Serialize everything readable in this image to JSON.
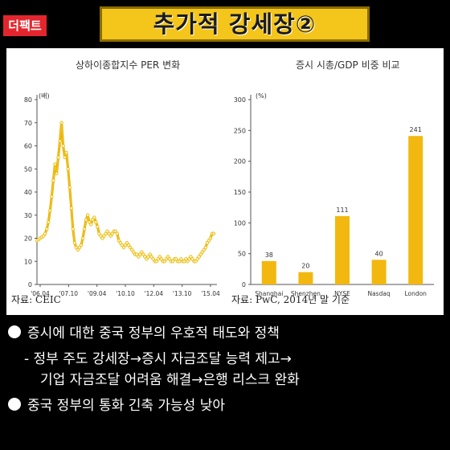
{
  "brand": {
    "logo_text": "더팩트"
  },
  "header": {
    "title": "추가적 강세장②"
  },
  "chart_data": [
    {
      "type": "line",
      "title": "상하이종합지수 PER 변화",
      "ylabel": "(배)",
      "ylim": [
        0,
        80
      ],
      "yticks": [
        0,
        10,
        20,
        30,
        40,
        50,
        60,
        70,
        80
      ],
      "xticks": [
        "'06.04",
        "'07.10",
        "'09.04",
        "'10.10",
        "'12.04",
        "'13.10",
        "'15.04"
      ],
      "x": [
        0,
        1,
        2,
        3,
        4,
        5,
        6,
        7,
        8,
        9,
        10,
        11,
        12,
        13,
        14,
        15,
        16,
        17,
        18,
        19,
        20,
        21,
        22,
        23,
        24,
        25,
        26,
        27,
        28,
        29,
        30,
        31,
        32,
        33,
        34,
        35,
        36,
        37,
        38,
        39,
        40,
        41,
        42,
        43,
        44,
        45,
        46,
        47,
        48,
        49,
        50,
        51,
        52,
        53,
        54,
        55,
        56,
        57,
        58,
        59,
        60,
        61,
        62,
        63,
        64,
        65,
        66,
        67,
        68,
        69,
        70,
        71,
        72,
        73,
        74,
        75,
        76,
        77,
        78,
        79,
        80,
        81,
        82,
        83,
        84,
        85,
        86,
        87,
        88,
        89,
        90,
        91,
        92,
        93,
        94,
        95,
        96,
        97,
        98,
        99,
        100,
        101,
        102,
        103,
        104,
        105,
        106,
        107,
        108
      ],
      "values": [
        19,
        19.5,
        20,
        20.5,
        21,
        22,
        24,
        27,
        32,
        38,
        45,
        52,
        48,
        55,
        62,
        70,
        60,
        55,
        57,
        50,
        42,
        33,
        24,
        18,
        16,
        15,
        16,
        17,
        20,
        24,
        28,
        30,
        27,
        26,
        28,
        29,
        27,
        25,
        22,
        21,
        20,
        21,
        22,
        23,
        22,
        21,
        22,
        23,
        23,
        22,
        19,
        18,
        17,
        16,
        17,
        18,
        17,
        16,
        15,
        14,
        13,
        13,
        12,
        13,
        14,
        13,
        12,
        11,
        12,
        13,
        12,
        11,
        10,
        10,
        11,
        12,
        11,
        10,
        10,
        11,
        12,
        11,
        10,
        10,
        11,
        11,
        10,
        10,
        11,
        10,
        10,
        11,
        10,
        11,
        12,
        11,
        10,
        10,
        11,
        12,
        13,
        14,
        15,
        16,
        18,
        19,
        20,
        22,
        22
      ],
      "source": "자료: CEIC",
      "grid": false,
      "color": "#f2c418"
    },
    {
      "type": "bar",
      "title": "증시 시총/GDP 비중 비교",
      "ylabel": "(%)",
      "ylim": [
        0,
        300
      ],
      "yticks": [
        0,
        50,
        100,
        150,
        200,
        250,
        300
      ],
      "categories": [
        "Shanghai",
        "Shenzhen",
        "NYSE",
        "Nasdaq",
        "London"
      ],
      "values": [
        38,
        20,
        111,
        40,
        241
      ],
      "source": "자료: PwC, 2014년 말 기준",
      "grid": false,
      "color": "#f2b80f"
    }
  ],
  "bullets": {
    "b1": "증시에 대한 중국 정부의 우호적 태도와  정책",
    "sub1": "- 정부 주도 강세장→증시 자금조달 능력 제고→",
    "sub2": "기업 자금조달 어려움 해결→은행 리스크 완화",
    "b2": "중국 정부의 통화 긴축 가능성 낮아"
  }
}
